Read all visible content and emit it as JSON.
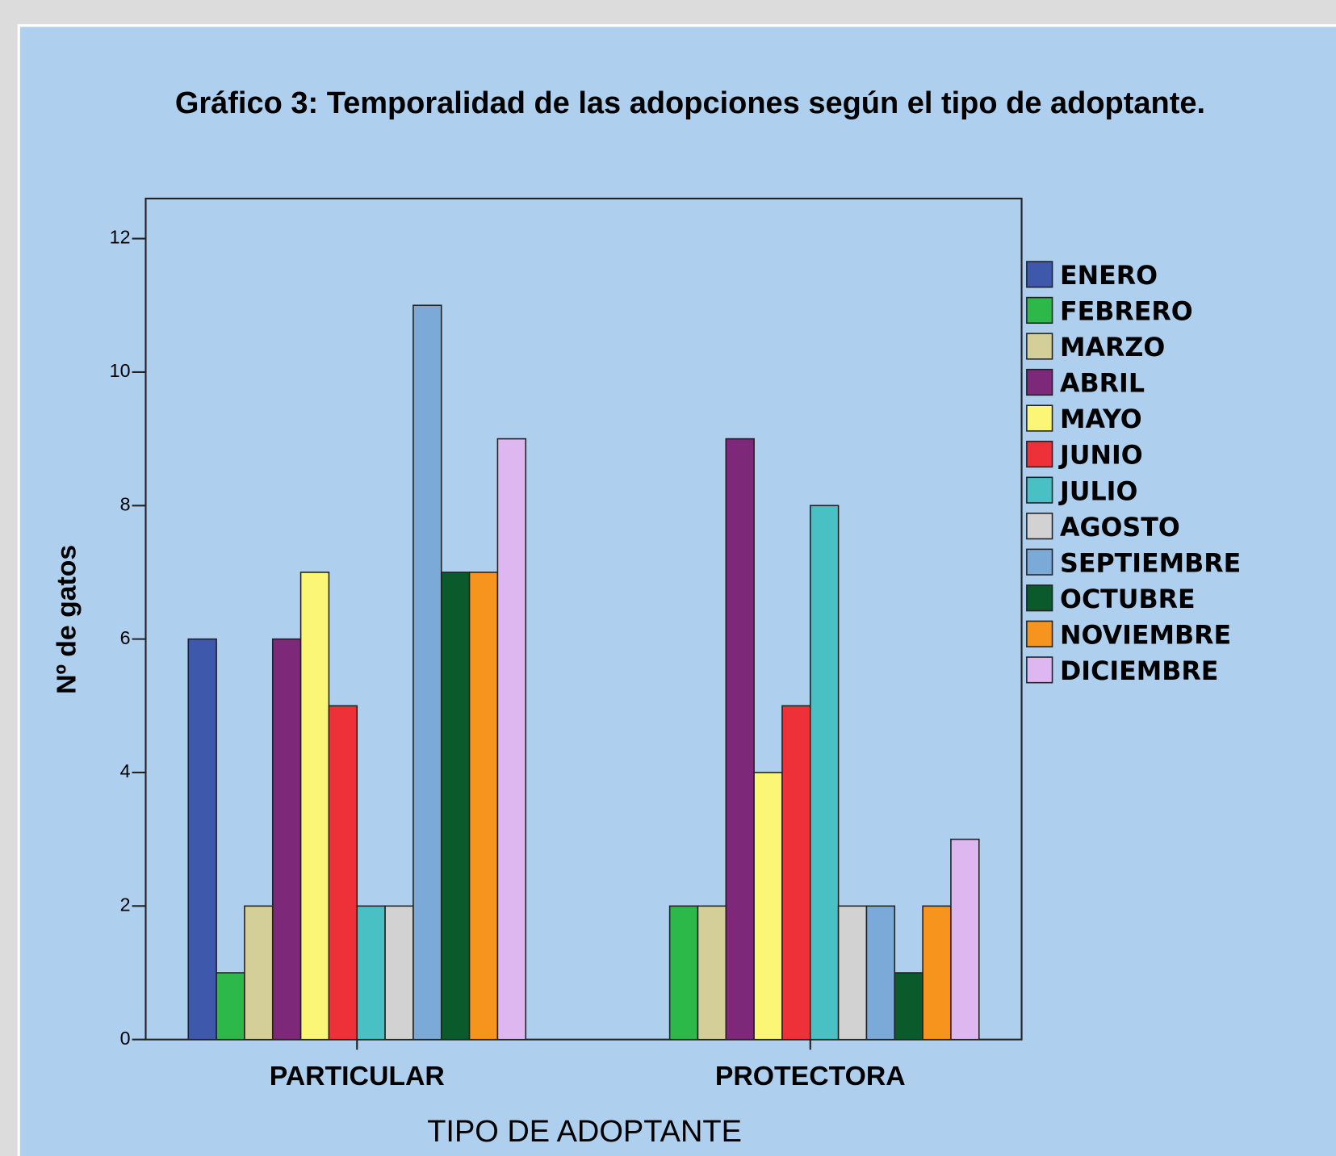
{
  "chart_data": {
    "type": "bar",
    "title": "Gráfico 3: Temporalidad de las adopciones según el tipo de adoptante.",
    "x_label": "TIPO DE ADOPTANTE",
    "y_label": "Nº de gatos",
    "categories": [
      "PARTICULAR",
      "PROTECTORA"
    ],
    "series": [
      {
        "name": "ENERO",
        "color": "#3e58ac",
        "values": [
          6,
          0
        ]
      },
      {
        "name": "FEBRERO",
        "color": "#2db84a",
        "values": [
          1,
          2
        ]
      },
      {
        "name": "MARZO",
        "color": "#d4cf98",
        "values": [
          2,
          2
        ]
      },
      {
        "name": "ABRIL",
        "color": "#7d2878",
        "values": [
          6,
          9
        ]
      },
      {
        "name": "MAYO",
        "color": "#fbf676",
        "values": [
          7,
          4
        ]
      },
      {
        "name": "JUNIO",
        "color": "#ee3139",
        "values": [
          5,
          5
        ]
      },
      {
        "name": "JULIO",
        "color": "#49c1c4",
        "values": [
          2,
          8
        ]
      },
      {
        "name": "AGOSTO",
        "color": "#d2d2d2",
        "values": [
          2,
          2
        ]
      },
      {
        "name": "SEPTIEMBRE",
        "color": "#7ba9d8",
        "values": [
          11,
          2
        ]
      },
      {
        "name": "OCTUBRE",
        "color": "#0a5a2c",
        "values": [
          7,
          1
        ]
      },
      {
        "name": "NOVIEMBRE",
        "color": "#f7941d",
        "values": [
          7,
          2
        ]
      },
      {
        "name": "DICIEMBRE",
        "color": "#deb7f0",
        "values": [
          9,
          3
        ]
      }
    ],
    "ylim": [
      0,
      12.6
    ],
    "yticks": [
      0,
      2,
      4,
      6,
      8,
      10,
      12
    ],
    "legend": "right"
  }
}
